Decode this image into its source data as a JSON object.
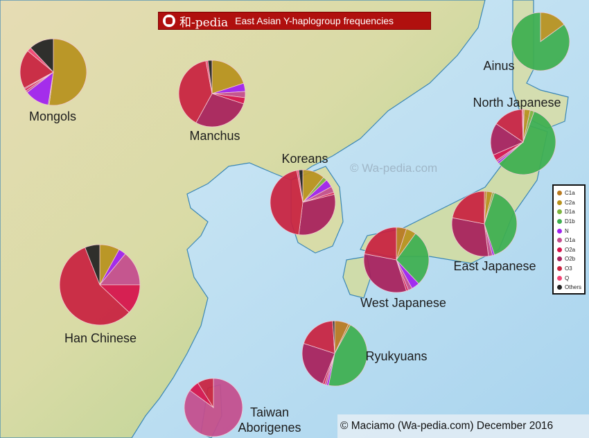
{
  "header": {
    "brand": "和-pedia",
    "title": "East Asian Y-haplogroup frequencies",
    "logo_icon": "wa-pedia-logo-icon"
  },
  "watermark": "© Wa-pedia.com",
  "copyright": "© Maciamo (Wa-pedia.com) December 2016",
  "legend": {
    "items": [
      {
        "label": "C1a",
        "color": "#b97a20"
      },
      {
        "label": "C2a",
        "color": "#b8921e"
      },
      {
        "label": "D1a",
        "color": "#7db540"
      },
      {
        "label": "D1b",
        "color": "#3eaf50"
      },
      {
        "label": "N",
        "color": "#a020f0"
      },
      {
        "label": "O1a",
        "color": "#c44d8e"
      },
      {
        "label": "O2a",
        "color": "#d6124c"
      },
      {
        "label": "O2b",
        "color": "#a8205c"
      },
      {
        "label": "O3",
        "color": "#c92240"
      },
      {
        "label": "Q",
        "color": "#f04474"
      },
      {
        "label": "Others",
        "color": "#222222"
      }
    ]
  },
  "chart_data": {
    "type": "pie",
    "unit": "%",
    "categories": [
      "C1a",
      "C2a",
      "D1a",
      "D1b",
      "N",
      "O1a",
      "O2a",
      "O2b",
      "O3",
      "Q",
      "Others"
    ],
    "populations": [
      {
        "name": "Mongols",
        "values": [
          0,
          52,
          0.5,
          0,
          12,
          1,
          1,
          0.5,
          19,
          2,
          12
        ]
      },
      {
        "name": "Manchus",
        "values": [
          0,
          20,
          0,
          0,
          4,
          3,
          3,
          28,
          39,
          1,
          2
        ]
      },
      {
        "name": "Koreans",
        "values": [
          0,
          11,
          2,
          0,
          4,
          3,
          1,
          31,
          45,
          1,
          2
        ]
      },
      {
        "name": "Ainus",
        "values": [
          0,
          15,
          0,
          85,
          0,
          0,
          0,
          0,
          0,
          0,
          0
        ]
      },
      {
        "name": "North Japanese",
        "values": [
          0.5,
          3,
          2,
          58,
          1,
          1,
          3,
          16,
          15,
          0.5,
          0
        ]
      },
      {
        "name": "East Japanese",
        "values": [
          1,
          3,
          1,
          40,
          1,
          2,
          0,
          30,
          22,
          0,
          0
        ]
      },
      {
        "name": "West Japanese",
        "values": [
          5,
          5,
          0,
          28,
          4,
          2,
          1,
          33,
          22,
          0,
          0
        ]
      },
      {
        "name": "Ryukyuans",
        "values": [
          7,
          1,
          0,
          45,
          1,
          1,
          1,
          24,
          19,
          0,
          1
        ]
      },
      {
        "name": "Taiwan Aborigenes",
        "values": [
          0,
          0,
          0,
          0,
          0,
          85,
          6,
          0,
          9,
          0,
          0
        ]
      },
      {
        "name": "Han Chinese",
        "values": [
          0,
          8,
          0,
          0,
          3,
          14,
          12,
          0,
          57,
          0,
          6
        ]
      }
    ]
  }
}
